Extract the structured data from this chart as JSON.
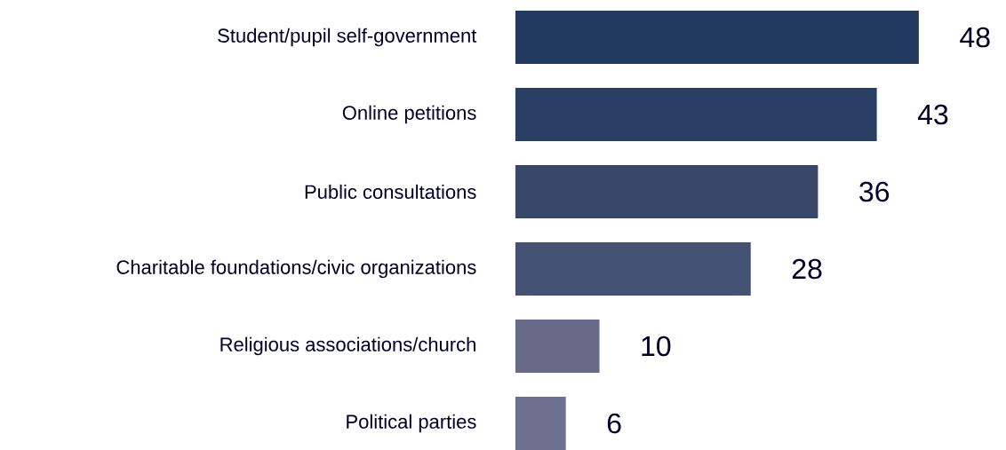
{
  "chart_data": {
    "type": "bar",
    "orientation": "horizontal",
    "categories": [
      "Student/pupil self-government",
      "Online petitions",
      "Public consultations",
      "Charitable foundations/civic organizations",
      "Religious associations/church",
      "Political parties"
    ],
    "values": [
      48,
      43,
      36,
      28,
      10,
      6
    ],
    "colors": [
      "#223a5e",
      "#283f63",
      "#394869",
      "#465273",
      "#666a87",
      "#6d7090"
    ],
    "data_labels": true
  }
}
